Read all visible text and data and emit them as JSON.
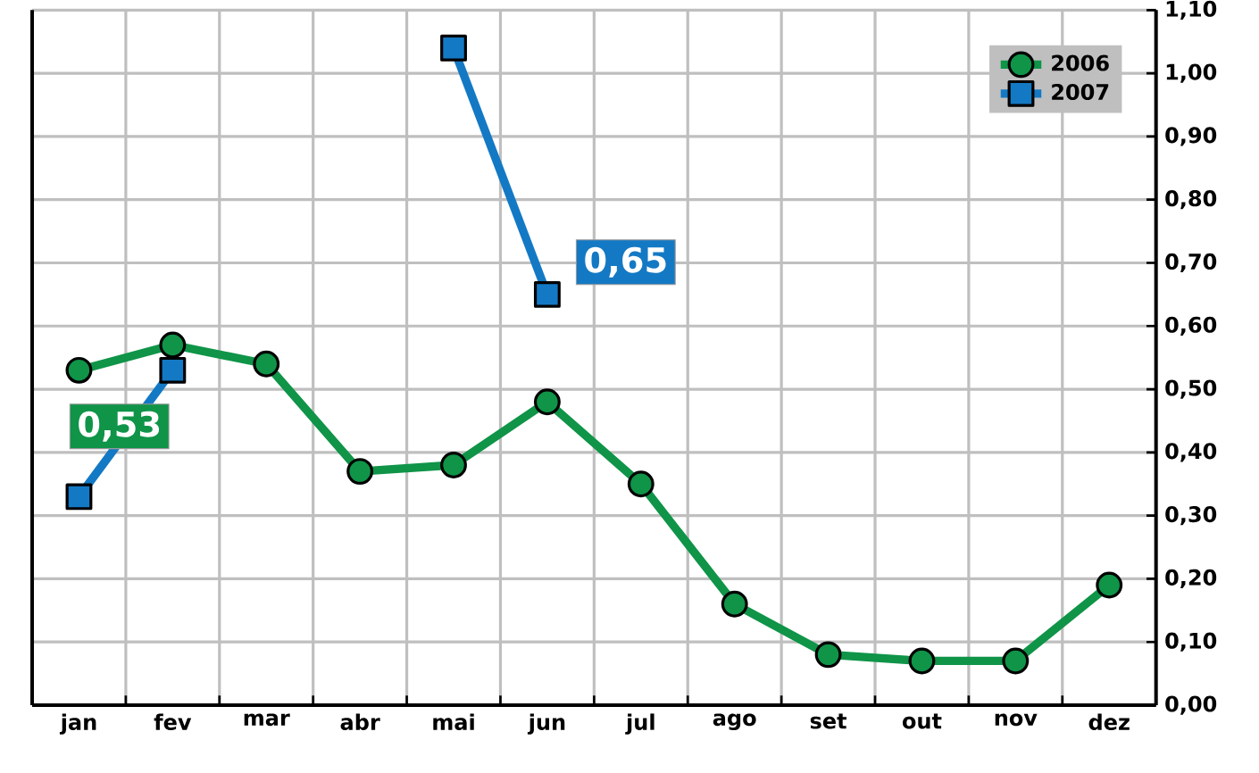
{
  "chart_data": {
    "type": "line",
    "categories": [
      "jan",
      "fev",
      "mar",
      "abr",
      "mai",
      "jun",
      "jul",
      "ago",
      "set",
      "out",
      "nov",
      "dez"
    ],
    "series": [
      {
        "name": "2006",
        "color": "#0f9448",
        "marker": "circle",
        "values": [
          0.53,
          0.57,
          0.54,
          0.37,
          0.38,
          0.48,
          0.35,
          0.16,
          0.08,
          0.07,
          0.07,
          0.19
        ],
        "value_labels": [
          "0,53",
          null,
          null,
          null,
          null,
          null,
          null,
          null,
          null,
          null,
          null,
          null
        ]
      },
      {
        "name": "2007",
        "color": "#1479c4",
        "marker": "square",
        "values": [
          0.33,
          0.53,
          null,
          null,
          1.04,
          0.65,
          null,
          null,
          null,
          null,
          null,
          null
        ],
        "value_labels": [
          null,
          null,
          null,
          null,
          null,
          "0,65",
          null,
          null,
          null,
          null,
          null,
          null
        ]
      }
    ],
    "ylim": [
      0,
      1.1
    ],
    "yticks": [
      {
        "value": 0,
        "label": "0,00"
      },
      {
        "value": 0.1,
        "label": "0,10"
      },
      {
        "value": 0.2,
        "label": "0,20"
      },
      {
        "value": 0.3,
        "label": "0,30"
      },
      {
        "value": 0.4,
        "label": "0,40"
      },
      {
        "value": 0.5,
        "label": "0,50"
      },
      {
        "value": 0.6,
        "label": "0,60"
      },
      {
        "value": 0.7,
        "label": "0,70"
      },
      {
        "value": 0.8,
        "label": "0,80"
      },
      {
        "value": 0.9,
        "label": "0,90"
      },
      {
        "value": 1.0,
        "label": "1,00"
      },
      {
        "value": 1.1,
        "label": "1,10"
      }
    ],
    "grid": true,
    "legend": "top right",
    "line_style": "solid"
  }
}
